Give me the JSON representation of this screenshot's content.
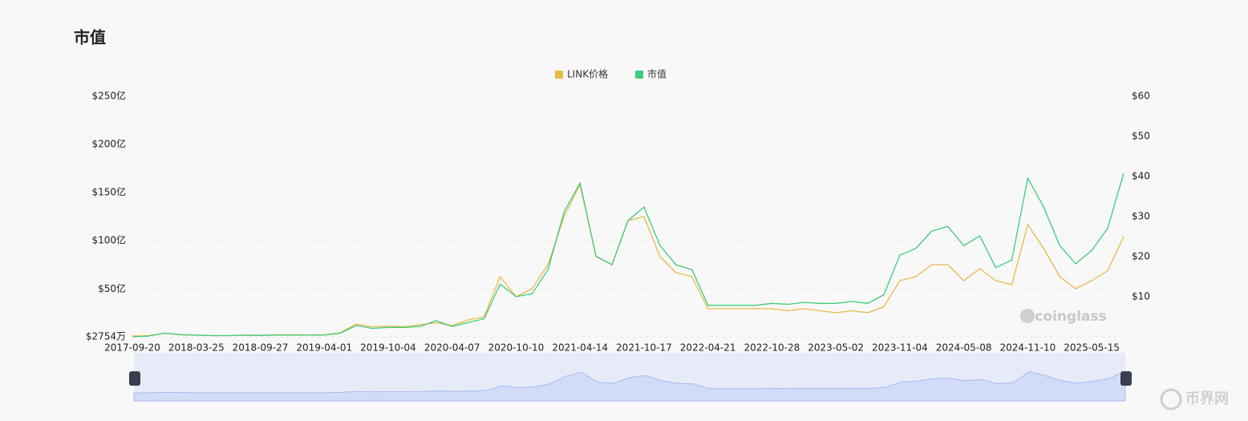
{
  "chart_data": {
    "type": "line",
    "title": "市值",
    "categories": [
      "2017-09-20",
      null,
      null,
      null,
      "2018-03-25",
      null,
      null,
      null,
      "2018-09-27",
      null,
      null,
      null,
      "2019-04-01",
      null,
      null,
      null,
      "2019-10-04",
      null,
      null,
      null,
      "2020-04-07",
      null,
      null,
      null,
      "2020-10-10",
      null,
      null,
      null,
      "2021-04-14",
      null,
      null,
      null,
      "2021-10-17",
      null,
      null,
      null,
      "2022-04-21",
      null,
      null,
      null,
      "2022-10-28",
      null,
      null,
      null,
      "2023-05-02",
      null,
      null,
      null,
      "2023-11-04",
      null,
      null,
      null,
      "2024-05-08",
      null,
      null,
      null,
      "2024-11-10",
      null,
      null,
      null,
      "2025-05-15",
      null,
      null
    ],
    "series": [
      {
        "name": "LINK价格",
        "color": "#e9b949",
        "axis": "y2",
        "values": [
          0.2,
          0.3,
          0.9,
          0.5,
          0.4,
          0.3,
          0.3,
          0.4,
          0.35,
          0.5,
          0.5,
          0.45,
          0.5,
          1.0,
          3.2,
          2.5,
          2.7,
          2.5,
          3.0,
          3.5,
          2.8,
          4.2,
          5,
          15,
          10,
          12,
          18,
          30,
          38,
          20,
          18,
          29,
          30,
          20,
          16,
          15,
          7,
          7,
          7,
          7,
          7,
          6.5,
          7,
          6.5,
          6,
          6.5,
          6,
          7.5,
          14,
          15,
          18,
          18,
          14,
          17,
          14,
          13,
          28,
          22,
          15,
          12,
          14,
          16.5,
          25
        ]
      },
      {
        "name": "市值",
        "color": "#3ecb7b",
        "values": [
          0.3,
          1,
          4,
          2.5,
          2,
          1.5,
          1.5,
          2,
          1.8,
          2,
          2,
          2,
          2,
          4,
          12,
          9,
          10,
          10,
          11,
          17,
          11,
          15,
          19,
          55,
          42,
          45,
          70,
          130,
          160,
          84,
          75,
          121,
          135,
          95,
          75,
          70,
          33,
          33,
          33,
          33,
          35,
          34,
          36,
          35,
          35,
          37,
          35,
          44,
          85,
          92,
          110,
          115,
          95,
          105,
          72,
          80,
          165,
          135,
          95,
          76,
          90,
          113,
          170
        ]
      }
    ],
    "ylim": [
      0.2754,
      250
    ],
    "yticks": [
      {
        "value": 0.2754,
        "label": "$2754万"
      },
      {
        "value": 50,
        "label": "$50亿"
      },
      {
        "value": 100,
        "label": "$100亿"
      },
      {
        "value": 150,
        "label": "$150亿"
      },
      {
        "value": 200,
        "label": "$200亿"
      },
      {
        "value": 250,
        "label": "$250亿"
      }
    ],
    "y2lim": [
      0,
      60
    ],
    "y2ticks": [
      {
        "value": 10,
        "label": "$10"
      },
      {
        "value": 20,
        "label": "$20"
      },
      {
        "value": 30,
        "label": "$30"
      },
      {
        "value": 40,
        "label": "$40"
      },
      {
        "value": 50,
        "label": "$50"
      },
      {
        "value": 60,
        "label": "$60"
      }
    ],
    "grid": true,
    "legend": "top",
    "watermark": "coinglass"
  },
  "brand": "币界网"
}
